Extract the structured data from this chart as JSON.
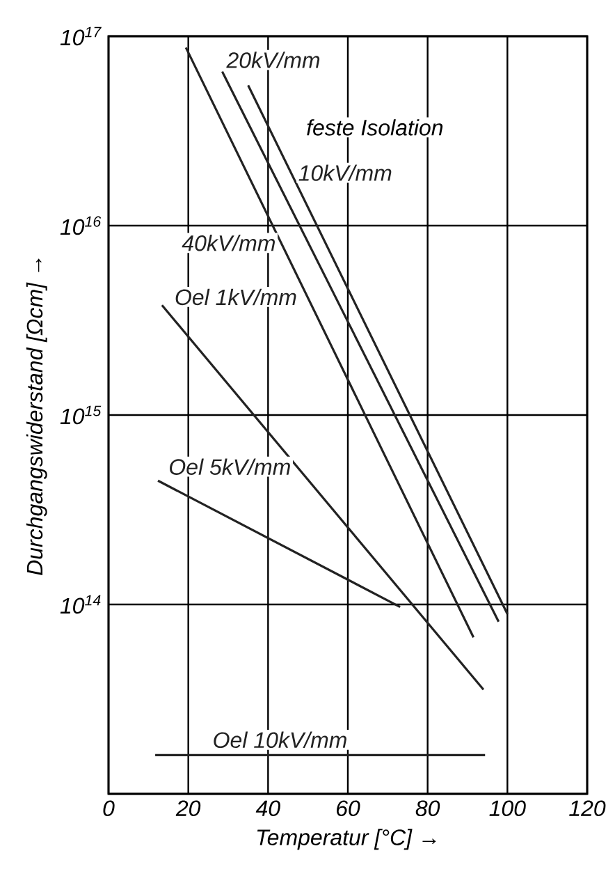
{
  "chart_data": {
    "type": "line",
    "xlabel": "Temperatur [°C] →",
    "ylabel": "Durchgangswiderstand [Ωcm] →",
    "annotations": [
      "feste Isolation"
    ],
    "xlim": [
      0,
      120
    ],
    "xticks": [
      0,
      20,
      40,
      60,
      80,
      100,
      120
    ],
    "ylim": [
      10000000000000.0,
      1e+17
    ],
    "yticks": [
      {
        "value": 10000000000000.0,
        "label": null
      },
      {
        "value": 100000000000000.0,
        "label": "10$^{14}$"
      },
      {
        "value": 1000000000000000.0,
        "label": "10$^{15}$"
      },
      {
        "value": 1e+16,
        "label": "10$^{16}$"
      },
      {
        "value": 1e+17,
        "label": "10$^{17}$"
      }
    ],
    "log": "y",
    "grid": true,
    "marker": "none",
    "line_style": "solid",
    "series": [
      {
        "name": "10kV/mm",
        "color": "#222222",
        "x": [
          35,
          100
        ],
        "values": [
          5.5e+16,
          89000000000000.0
        ]
      },
      {
        "name": "20kV/mm",
        "color": "#222222",
        "x": [
          28.5,
          97.8
        ],
        "values": [
          6.5e+16,
          81000000000000.0
        ]
      },
      {
        "name": "40kV/mm",
        "color": "#222222",
        "x": [
          19.4,
          91.5
        ],
        "values": [
          8.7e+16,
          67000000000000.0
        ]
      },
      {
        "name": "Oel 1kV/mm",
        "color": "#222222",
        "x": [
          13.4,
          94
        ],
        "values": [
          3800000000000000.0,
          35500000000000.0
        ]
      },
      {
        "name": "Oel 5kV/mm",
        "color": "#222222",
        "x": [
          12.4,
          73.1
        ],
        "values": [
          450000000000000.0,
          97000000000000.0
        ]
      },
      {
        "name": "Oel 10kV/mm",
        "color": "#222222",
        "x": [
          11.7,
          94.4
        ],
        "values": [
          16000000000000.0,
          16000000000000.0
        ]
      }
    ]
  }
}
